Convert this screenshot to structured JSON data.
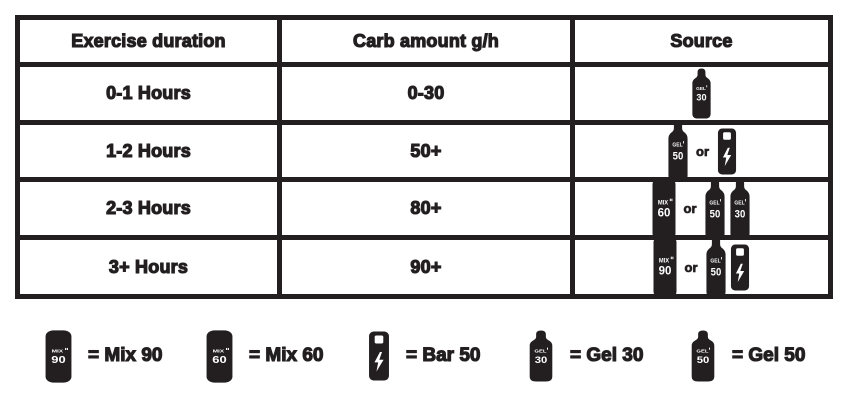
{
  "colors": {
    "ink": "#231f20",
    "paper": "#ffffff"
  },
  "table": {
    "headers": [
      "Exercise duration",
      "Carb amount g/h",
      "Source"
    ],
    "or_label": "or",
    "rows": [
      {
        "duration": "0-1 Hours",
        "carbs": "0-30",
        "sources": [
          {
            "type": "gel",
            "label": "GEL",
            "value": "30"
          }
        ]
      },
      {
        "duration": "1-2 Hours",
        "carbs": "50+",
        "sources": [
          {
            "type": "gel",
            "label": "GEL",
            "value": "50"
          },
          {
            "type": "or"
          },
          {
            "type": "bar",
            "value": "50"
          }
        ]
      },
      {
        "duration": "2-3 Hours",
        "carbs": "80+",
        "sources": [
          {
            "type": "mix",
            "label": "MIX",
            "value": "60"
          },
          {
            "type": "or"
          },
          {
            "type": "gel",
            "label": "GEL",
            "value": "50"
          },
          {
            "type": "gel",
            "label": "GEL",
            "value": "30"
          }
        ]
      },
      {
        "duration": "3+ Hours",
        "carbs": "90+",
        "sources": [
          {
            "type": "mix",
            "label": "MIX",
            "value": "90"
          },
          {
            "type": "or"
          },
          {
            "type": "gel",
            "label": "GEL",
            "value": "50"
          },
          {
            "type": "bar",
            "value": "50"
          }
        ]
      }
    ]
  },
  "legend": [
    {
      "type": "mix",
      "label": "MIX",
      "value": "90",
      "text": "= Mix 90"
    },
    {
      "type": "mix",
      "label": "MIX",
      "value": "60",
      "text": "= Mix 60"
    },
    {
      "type": "bar",
      "value": "50",
      "text": "= Bar 50"
    },
    {
      "type": "gel",
      "label": "GEL",
      "value": "30",
      "text": "= Gel 30"
    },
    {
      "type": "gel",
      "label": "GEL",
      "value": "50",
      "text": "= Gel 50"
    }
  ]
}
